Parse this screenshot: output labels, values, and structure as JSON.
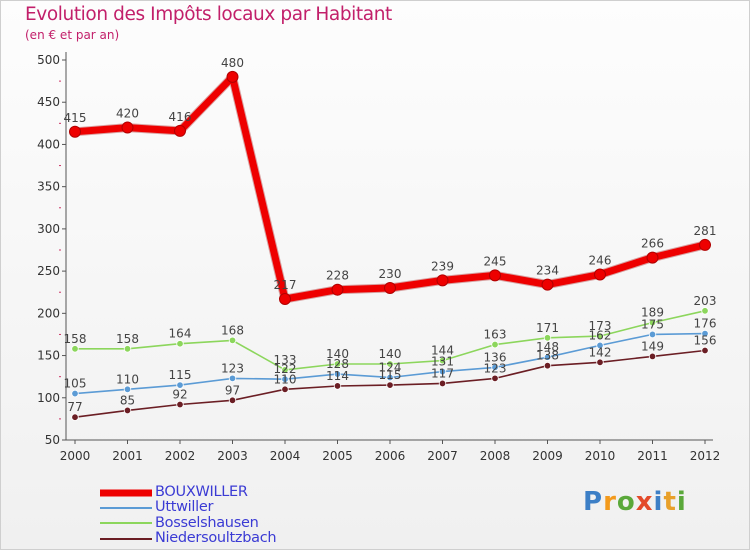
{
  "header": {
    "title": "Evolution des Impôts locaux par Habitant",
    "subtitle": "(en € et par an)"
  },
  "brand": {
    "name": "Proxiti",
    "letters": [
      "P",
      "r",
      "o",
      "x",
      "i",
      "t",
      "i"
    ],
    "letter_colors": [
      "#3c7fc6",
      "#f39a1c",
      "#5aa83a",
      "#e34a2a",
      "#3c7fc6",
      "#e8a02a",
      "#5aa83a"
    ]
  },
  "chart_data": {
    "type": "line",
    "title": "Evolution des Impôts locaux par Habitant",
    "subtitle": "(en € et par an)",
    "xlabel": "",
    "ylabel": "",
    "x": [
      "2000",
      "2001",
      "2002",
      "2003",
      "2004",
      "2005",
      "2006",
      "2007",
      "2008",
      "2009",
      "2010",
      "2011",
      "2012"
    ],
    "ylim": [
      50,
      500
    ],
    "yticks": [
      50,
      100,
      150,
      200,
      250,
      300,
      350,
      400,
      450,
      500
    ],
    "ytick_labels": [
      "50",
      "100",
      "150",
      "200",
      "250",
      "300",
      "350",
      "400",
      "450",
      "500"
    ],
    "grid": false,
    "legend_position": "bottom-left",
    "series": [
      {
        "name": "BOUXWILLER",
        "color": "#ee0000",
        "values": [
          415,
          420,
          416,
          480,
          217,
          228,
          230,
          239,
          245,
          234,
          246,
          266,
          281
        ],
        "labels": [
          "415",
          "420",
          "416",
          "480",
          "217",
          "228",
          "230",
          "239",
          "245",
          "234",
          "246",
          "266",
          "281"
        ]
      },
      {
        "name": "Uttwiller",
        "color": "#5b9bd5",
        "values": [
          105,
          110,
          115,
          123,
          122,
          128,
          124,
          131,
          136,
          148,
          162,
          175,
          176
        ],
        "labels": [
          "105",
          "110",
          "115",
          "123",
          "122",
          "128",
          "124",
          "131",
          "136",
          "148",
          "162",
          "175",
          "176"
        ]
      },
      {
        "name": "Bosselshausen",
        "color": "#8cd65c",
        "values": [
          158,
          158,
          164,
          168,
          133,
          140,
          140,
          144,
          163,
          171,
          173,
          189,
          203
        ],
        "labels": [
          "158",
          "158",
          "164",
          "168",
          "133",
          "140",
          "140",
          "144",
          "163",
          "171",
          "173",
          "189",
          "203"
        ]
      },
      {
        "name": "Niedersoultzbach",
        "color": "#6b1e24",
        "values": [
          77,
          85,
          92,
          97,
          110,
          114,
          115,
          117,
          123,
          138,
          142,
          149,
          156
        ],
        "labels": [
          "77",
          "85",
          "92",
          "97",
          "110",
          "114",
          "115",
          "117",
          "123",
          "138",
          "142",
          "149",
          "156"
        ]
      }
    ]
  }
}
